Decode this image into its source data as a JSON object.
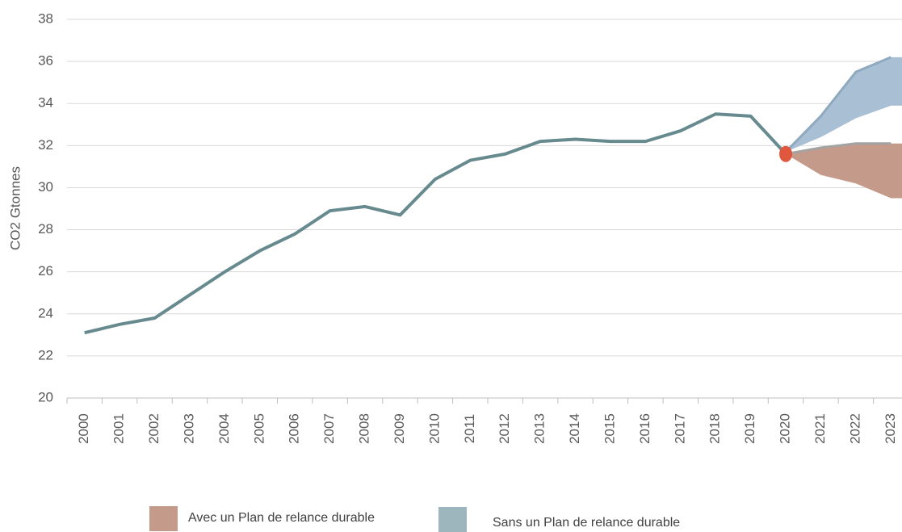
{
  "chart_data": {
    "type": "line",
    "y_label": "CO2 Gtonnes",
    "categories": [
      "2000",
      "2001",
      "2002",
      "2003",
      "2004",
      "2005",
      "2006",
      "2007",
      "2008",
      "2009",
      "2010",
      "2011",
      "2012",
      "2013",
      "2014",
      "2015",
      "2016",
      "2017",
      "2018",
      "2019",
      "2020",
      "2021",
      "2022",
      "2023"
    ],
    "series": [
      {
        "color": "#678a8f",
        "values": [
          23.1,
          23.5,
          23.8,
          24.9,
          26.0,
          27.0,
          27.8,
          28.9,
          29.1,
          28.7,
          30.4,
          31.3,
          31.6,
          32.2,
          32.3,
          32.2,
          32.2,
          32.7,
          33.5,
          33.4,
          31.6,
          null,
          null,
          null
        ]
      }
    ],
    "bands": [
      {
        "name": "Avec un Plan de relance durable",
        "color": "#c49a8b",
        "edge": "#a3a3a3",
        "upper": [
          null,
          null,
          null,
          null,
          null,
          null,
          null,
          null,
          null,
          null,
          null,
          null,
          null,
          null,
          null,
          null,
          null,
          null,
          null,
          null,
          31.6,
          31.9,
          32.1,
          32.1
        ],
        "lower": [
          null,
          null,
          null,
          null,
          null,
          null,
          null,
          null,
          null,
          null,
          null,
          null,
          null,
          null,
          null,
          null,
          null,
          null,
          null,
          null,
          31.6,
          30.6,
          30.2,
          29.5
        ]
      },
      {
        "name": "Sans  un Plan de relance durable",
        "color": "#a9bfd4",
        "edge": "#8fa9bf",
        "upper": [
          null,
          null,
          null,
          null,
          null,
          null,
          null,
          null,
          null,
          null,
          null,
          null,
          null,
          null,
          null,
          null,
          null,
          null,
          null,
          null,
          31.7,
          33.4,
          35.5,
          36.2
        ],
        "lower": [
          null,
          null,
          null,
          null,
          null,
          null,
          null,
          null,
          null,
          null,
          null,
          null,
          null,
          null,
          null,
          null,
          null,
          null,
          null,
          null,
          31.7,
          32.4,
          33.3,
          33.9
        ]
      }
    ],
    "marker_color": "#e0573e",
    "ylim": [
      20,
      38
    ],
    "yticks": [
      20,
      22,
      24,
      26,
      28,
      30,
      32,
      34,
      36,
      38
    ],
    "grid": true
  }
}
